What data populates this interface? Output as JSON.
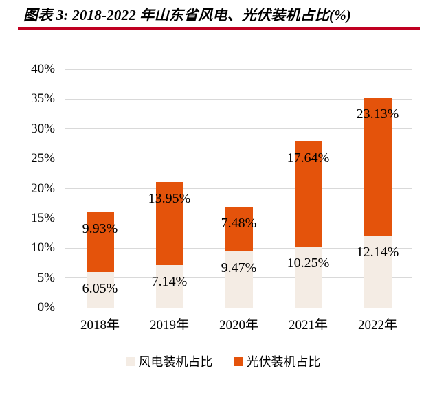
{
  "colors": {
    "background": "#FFFFFF",
    "title_text": "#000000",
    "title_rule": "#C00021",
    "gridline": "#D9D9D9",
    "axis_text": "#000000",
    "wind_series": "#F4ECE4",
    "pv_series": "#E4530B"
  },
  "chart_data": {
    "type": "bar",
    "stacked": true,
    "title": "图表 3: 2018-2022 年山东省风电、光伏装机占比(%)",
    "categories": [
      "2018年",
      "2019年",
      "2020年",
      "2021年",
      "2022年"
    ],
    "series": [
      {
        "name": "风电装机占比",
        "color": "#F4ECE4",
        "values": [
          6.05,
          7.14,
          9.47,
          10.25,
          12.14
        ],
        "labels": [
          "6.05%",
          "7.14%",
          "9.47%",
          "10.25%",
          "12.14%"
        ]
      },
      {
        "name": "光伏装机占比",
        "color": "#E4530B",
        "values": [
          9.93,
          13.95,
          7.48,
          17.64,
          23.13
        ],
        "labels": [
          "9.93%",
          "13.95%",
          "7.48%",
          "17.64%",
          "23.13%"
        ]
      }
    ],
    "ylim": [
      0,
      40
    ],
    "ytick_step": 5,
    "ytick_labels": [
      "0%",
      "5%",
      "10%",
      "15%",
      "20%",
      "25%",
      "30%",
      "35%",
      "40%"
    ],
    "xlabel": "",
    "ylabel": "",
    "grid": "horizontal",
    "data_labels": "inside-end",
    "legend_position": "bottom"
  }
}
